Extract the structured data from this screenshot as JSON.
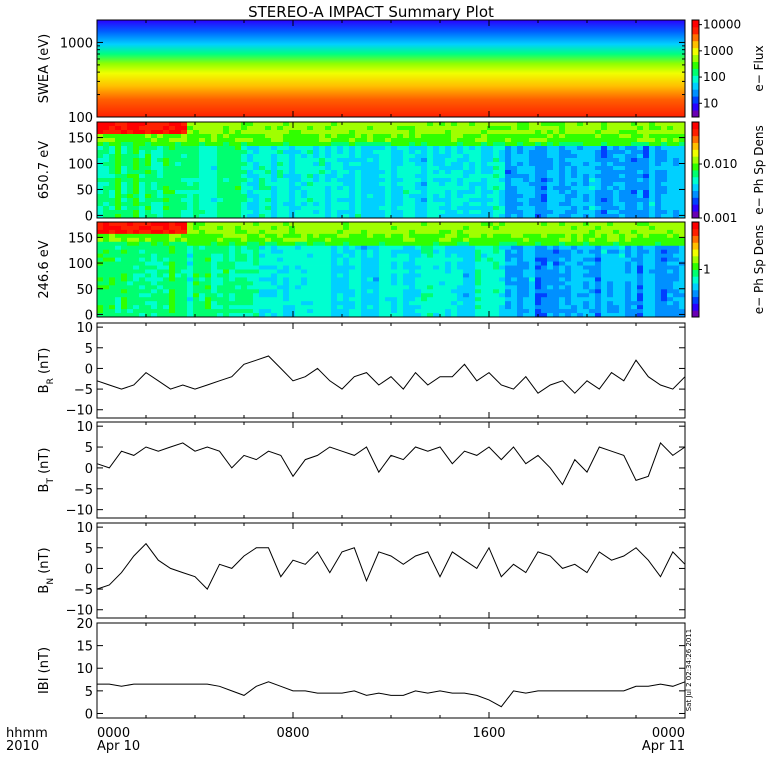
{
  "title": "STEREO-A IMPACT Summary Plot",
  "stamp": "Sat Jul  2 02:34:26 2011",
  "time_axis": {
    "corner_label": "hhmm",
    "corner_year": "2010",
    "ticks": [
      {
        "t": 0,
        "time": "0000",
        "date": "Apr 10"
      },
      {
        "t": 8,
        "time": "0800",
        "date": ""
      },
      {
        "t": 16,
        "time": "1600",
        "date": ""
      },
      {
        "t": 24,
        "time": "0000",
        "date": "Apr 11"
      }
    ]
  },
  "colormap": [
    "#6a00b4",
    "#2a00ff",
    "#0040ff",
    "#0090ff",
    "#00d0ff",
    "#00ffd0",
    "#00ff70",
    "#30ff00",
    "#a0ff00",
    "#f0ff00",
    "#ffc000",
    "#ff7000",
    "#ff2000",
    "#ff0000"
  ],
  "chart_data": [
    {
      "type": "heatmap",
      "ylabel": "SWEA (eV)",
      "yscale": "log",
      "ylim": [
        100,
        2000
      ],
      "yticks": [
        {
          "v": 100,
          "label": "100"
        },
        {
          "v": 1000,
          "label": "1000"
        }
      ],
      "colorbar": {
        "label": "e− Flux",
        "scale": "log",
        "range": [
          3,
          15000
        ],
        "ticks": [
          {
            "v": 10,
            "label": "10"
          },
          {
            "v": 100,
            "label": "100"
          },
          {
            "v": 1000,
            "label": "1000"
          },
          {
            "v": 10000,
            "label": "10000"
          }
        ]
      },
      "xlim": [
        0,
        24
      ]
    },
    {
      "type": "heatmap",
      "ylabel": "650.7 eV",
      "ylim": [
        -5,
        180
      ],
      "yticks": [
        {
          "v": 0,
          "label": "0"
        },
        {
          "v": 50,
          "label": "50"
        },
        {
          "v": 100,
          "label": "100"
        },
        {
          "v": 150,
          "label": "150"
        }
      ],
      "colorbar": {
        "label": "e− Ph Sp Dens",
        "scale": "log",
        "range": [
          0.001,
          0.06
        ],
        "ticks": [
          {
            "v": 0.001,
            "label": "0.001"
          },
          {
            "v": 0.01,
            "label": "0.010"
          }
        ]
      },
      "xlim": [
        0,
        24
      ]
    },
    {
      "type": "heatmap",
      "ylabel": "246.6 eV",
      "ylim": [
        -5,
        180
      ],
      "yticks": [
        {
          "v": 0,
          "label": "0"
        },
        {
          "v": 50,
          "label": "50"
        },
        {
          "v": 100,
          "label": "100"
        },
        {
          "v": 150,
          "label": "150"
        }
      ],
      "colorbar": {
        "label": "e− Ph Sp Dens",
        "scale": "log",
        "range": [
          0.1,
          10
        ],
        "ticks": [
          {
            "v": 1,
            "label": "1"
          }
        ]
      },
      "xlim": [
        0,
        24
      ]
    },
    {
      "type": "line",
      "ylabel": "B",
      "ylabel_sub": "R",
      "ylabel_unit": " (nT)",
      "ylim": [
        -12,
        11
      ],
      "yticks": [
        {
          "v": -10,
          "label": "−10"
        },
        {
          "v": -5,
          "label": "−5"
        },
        {
          "v": 0,
          "label": "0"
        },
        {
          "v": 5,
          "label": "5"
        },
        {
          "v": 10,
          "label": "10"
        }
      ],
      "xlim": [
        0,
        24
      ],
      "x": [
        0,
        0.5,
        1,
        1.5,
        2,
        2.5,
        3,
        3.5,
        4,
        4.5,
        5,
        5.5,
        6,
        6.5,
        7,
        7.5,
        8,
        8.5,
        9,
        9.5,
        10,
        10.5,
        11,
        11.5,
        12,
        12.5,
        13,
        13.5,
        14,
        14.5,
        15,
        15.5,
        16,
        16.5,
        17,
        17.5,
        18,
        18.5,
        19,
        19.5,
        20,
        20.5,
        21,
        21.5,
        22,
        22.5,
        23,
        23.5,
        24
      ],
      "y": [
        -3,
        -4,
        -5,
        -4,
        -1,
        -3,
        -5,
        -4,
        -5,
        -4,
        -3,
        -2,
        1,
        2,
        3,
        0,
        -3,
        -2,
        0,
        -3,
        -5,
        -2,
        -1,
        -4,
        -2,
        -5,
        -1,
        -4,
        -2,
        -2,
        1,
        -3,
        -1,
        -4,
        -5,
        -2,
        -6,
        -4,
        -3,
        -6,
        -3,
        -5,
        -1,
        -3,
        2,
        -2,
        -4,
        -5,
        -2
      ]
    },
    {
      "type": "line",
      "ylabel": "B",
      "ylabel_sub": "T",
      "ylabel_unit": " (nT)",
      "ylim": [
        -12,
        11
      ],
      "yticks": [
        {
          "v": -10,
          "label": "−10"
        },
        {
          "v": -5,
          "label": "−5"
        },
        {
          "v": 0,
          "label": "0"
        },
        {
          "v": 5,
          "label": "5"
        },
        {
          "v": 10,
          "label": "10"
        }
      ],
      "xlim": [
        0,
        24
      ],
      "x": [
        0,
        0.5,
        1,
        1.5,
        2,
        2.5,
        3,
        3.5,
        4,
        4.5,
        5,
        5.5,
        6,
        6.5,
        7,
        7.5,
        8,
        8.5,
        9,
        9.5,
        10,
        10.5,
        11,
        11.5,
        12,
        12.5,
        13,
        13.5,
        14,
        14.5,
        15,
        15.5,
        16,
        16.5,
        17,
        17.5,
        18,
        18.5,
        19,
        19.5,
        20,
        20.5,
        21,
        21.5,
        22,
        22.5,
        23,
        23.5,
        24
      ],
      "y": [
        1,
        0,
        4,
        3,
        5,
        4,
        5,
        6,
        4,
        5,
        4,
        0,
        3,
        2,
        4,
        3,
        -2,
        2,
        3,
        5,
        4,
        3,
        5,
        -1,
        3,
        2,
        5,
        4,
        5,
        1,
        4,
        3,
        5,
        2,
        5,
        1,
        3,
        0,
        -4,
        2,
        -1,
        5,
        4,
        3,
        -3,
        -2,
        6,
        3,
        5
      ]
    },
    {
      "type": "line",
      "ylabel": "B",
      "ylabel_sub": "N",
      "ylabel_unit": " (nT)",
      "ylim": [
        -12,
        11
      ],
      "yticks": [
        {
          "v": -10,
          "label": "−10"
        },
        {
          "v": -5,
          "label": "−5"
        },
        {
          "v": 0,
          "label": "0"
        },
        {
          "v": 5,
          "label": "5"
        },
        {
          "v": 10,
          "label": "10"
        }
      ],
      "xlim": [
        0,
        24
      ],
      "x": [
        0,
        0.5,
        1,
        1.5,
        2,
        2.5,
        3,
        3.5,
        4,
        4.5,
        5,
        5.5,
        6,
        6.5,
        7,
        7.5,
        8,
        8.5,
        9,
        9.5,
        10,
        10.5,
        11,
        11.5,
        12,
        12.5,
        13,
        13.5,
        14,
        14.5,
        15,
        15.5,
        16,
        16.5,
        17,
        17.5,
        18,
        18.5,
        19,
        19.5,
        20,
        20.5,
        21,
        21.5,
        22,
        22.5,
        23,
        23.5,
        24
      ],
      "y": [
        -5,
        -4,
        -1,
        3,
        6,
        2,
        0,
        -1,
        -2,
        -5,
        1,
        0,
        3,
        5,
        5,
        -2,
        2,
        1,
        4,
        -1,
        4,
        5,
        -3,
        4,
        3,
        1,
        3,
        4,
        -2,
        4,
        2,
        0,
        5,
        -2,
        1,
        -1,
        4,
        3,
        0,
        1,
        -1,
        4,
        2,
        3,
        5,
        2,
        -2,
        4,
        1
      ]
    },
    {
      "type": "line",
      "ylabel": "IBI (nT)",
      "ylim": [
        -1,
        20
      ],
      "yticks": [
        {
          "v": 0,
          "label": "0"
        },
        {
          "v": 5,
          "label": "5"
        },
        {
          "v": 10,
          "label": "10"
        },
        {
          "v": 15,
          "label": "15"
        },
        {
          "v": 20,
          "label": "20"
        }
      ],
      "xlim": [
        0,
        24
      ],
      "x": [
        0,
        0.5,
        1,
        1.5,
        2,
        2.5,
        3,
        3.5,
        4,
        4.5,
        5,
        5.5,
        6,
        6.5,
        7,
        7.5,
        8,
        8.5,
        9,
        9.5,
        10,
        10.5,
        11,
        11.5,
        12,
        12.5,
        13,
        13.5,
        14,
        14.5,
        15,
        15.5,
        16,
        16.5,
        17,
        17.5,
        18,
        18.5,
        19,
        19.5,
        20,
        20.5,
        21,
        21.5,
        22,
        22.5,
        23,
        23.5,
        24
      ],
      "y": [
        6.5,
        6.5,
        6,
        6.5,
        6.5,
        6.5,
        6.5,
        6.5,
        6.5,
        6.5,
        6,
        5,
        4,
        6,
        7,
        6,
        5,
        5,
        4.5,
        4.5,
        4.5,
        5,
        4,
        4.5,
        4,
        4,
        5,
        4.5,
        5,
        4.5,
        4.5,
        4,
        3,
        1.5,
        5,
        4.5,
        5,
        5,
        5,
        5,
        5,
        5,
        5,
        5,
        6,
        6,
        6.5,
        6,
        7
      ]
    }
  ]
}
